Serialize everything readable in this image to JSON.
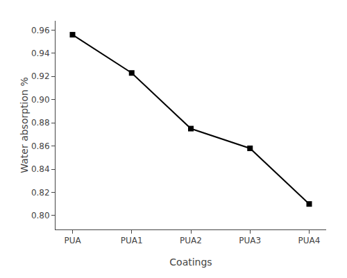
{
  "chart_data": {
    "type": "line",
    "xlabel": "Coatings",
    "ylabel": "Water absorption %",
    "categories": [
      "PUA",
      "PUA1",
      "PUA2",
      "PUA3",
      "PUA4"
    ],
    "values": [
      0.956,
      0.923,
      0.875,
      0.858,
      0.81
    ],
    "color": "#000000",
    "marker": "square",
    "ylim": [
      0.788,
      0.968
    ],
    "yticks": [
      {
        "value": 0.8,
        "label": "0.80"
      },
      0.82,
      0.84,
      0.86,
      0.88,
      {
        "value": 0.9,
        "label": "0.90"
      },
      0.92,
      0.94,
      0.96
    ],
    "grid": false
  }
}
